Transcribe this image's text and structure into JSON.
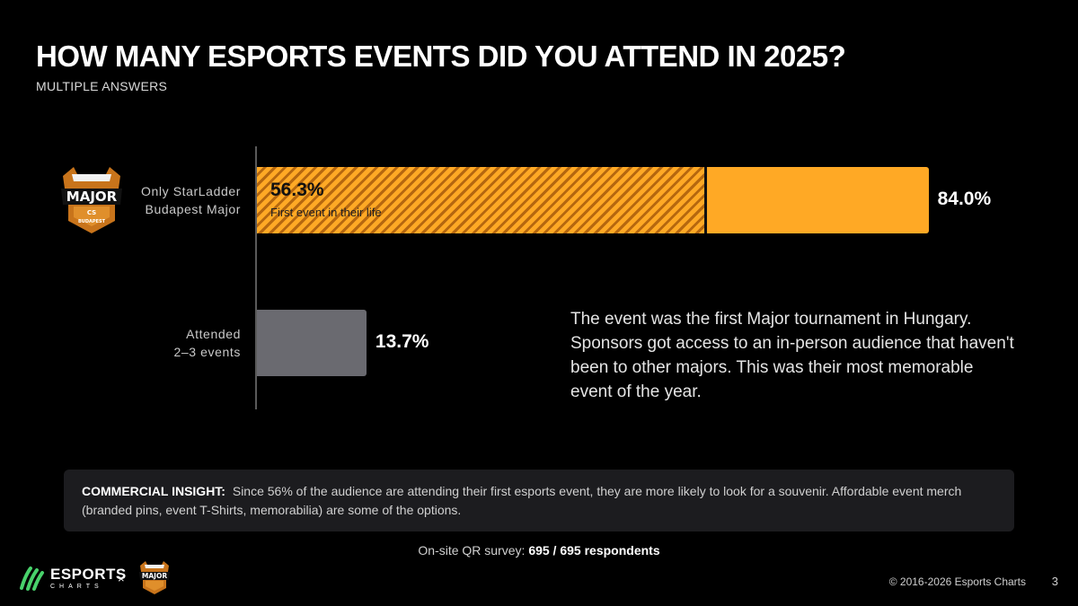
{
  "title": "HOW MANY ESPORTS EVENTS DID YOU ATTEND IN 2025?",
  "subtitle": "MULTIPLE ANSWERS",
  "chart_data": {
    "type": "bar",
    "orientation": "horizontal",
    "xlim": [
      0,
      100
    ],
    "categories": [
      {
        "label_lines": [
          "Only StarLadder",
          "Budapest Major"
        ],
        "value": 84.0,
        "value_label": "84.0%",
        "sub_value": 56.3,
        "sub_value_label": "56.3%",
        "sub_caption": "First event in their life"
      },
      {
        "label_lines": [
          "Attended",
          "2–3 events"
        ],
        "value": 13.7,
        "value_label": "13.7%"
      }
    ],
    "colors": {
      "primary": "#ffa925",
      "hatch_dark": "#b5670f",
      "secondary": "#6a6a70"
    }
  },
  "annotation": "The event was the first Major tournament in Hungary. Sponsors got access to an in-person audience that haven't been to other majors. This was their most memorable event of the year.",
  "insight": {
    "heading": "COMMERCIAL INSIGHT:",
    "text": "Since 56% of the audience are attending their first esports event, they are more likely to look for a souvenir. Affordable event merch (branded pins, event T-Shirts, memorabilia) are some of the options."
  },
  "survey": {
    "prefix": "On-site QR survey:",
    "value": "695 / 695 respondents"
  },
  "footer": {
    "brand_main": "ESPORTS",
    "brand_sub": "CHARTS",
    "times": "×",
    "copyright": "© 2016-2026 Esports Charts",
    "page": "3"
  },
  "icons": {
    "brand_logo": "esports-charts-logo",
    "event_logo": "starladder-major-budapest-logo"
  }
}
